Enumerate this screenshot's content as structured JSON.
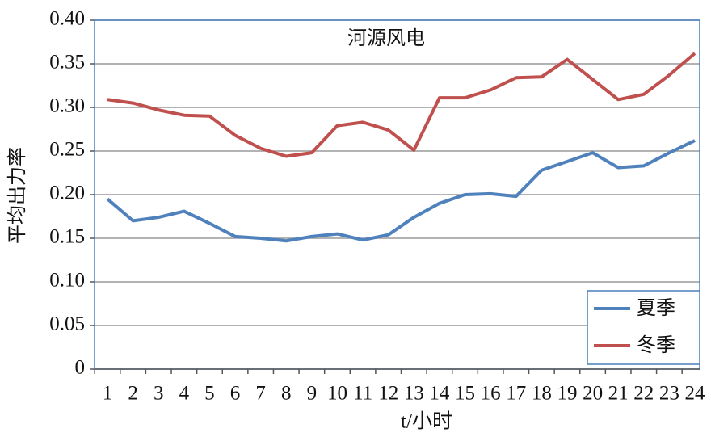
{
  "chart_data": {
    "type": "line",
    "title": "河源风电",
    "x_label": "t/小时",
    "y_label": "平均出力率",
    "categories": [
      "1",
      "2",
      "3",
      "4",
      "5",
      "6",
      "7",
      "8",
      "9",
      "10",
      "11",
      "12",
      "13",
      "14",
      "15",
      "16",
      "17",
      "18",
      "19",
      "20",
      "21",
      "22",
      "23",
      "24"
    ],
    "series": [
      {
        "name": "夏季",
        "color": "#4f81bd",
        "values": [
          0.195,
          0.17,
          0.174,
          0.181,
          0.167,
          0.152,
          0.15,
          0.147,
          0.152,
          0.155,
          0.148,
          0.154,
          0.174,
          0.19,
          0.2,
          0.201,
          0.198,
          0.228,
          0.238,
          0.248,
          0.231,
          0.233,
          0.248,
          0.262
        ]
      },
      {
        "name": "冬季",
        "color": "#c0504d",
        "values": [
          0.309,
          0.305,
          0.297,
          0.291,
          0.29,
          0.268,
          0.253,
          0.244,
          0.248,
          0.279,
          0.283,
          0.274,
          0.251,
          0.311,
          0.311,
          0.32,
          0.334,
          0.335,
          0.355,
          0.332,
          0.309,
          0.315,
          0.337,
          0.362
        ]
      }
    ],
    "ylim": [
      0,
      0.4
    ],
    "yticks": [
      0,
      {
        "value": 0.05,
        "label": "0.05"
      },
      {
        "value": 0.1,
        "label": "0.10"
      },
      {
        "value": 0.15,
        "label": "0.15"
      },
      {
        "value": 0.2,
        "label": "0.20"
      },
      {
        "value": 0.25,
        "label": "0.25"
      },
      {
        "value": 0.3,
        "label": "0.30"
      },
      {
        "value": 0.35,
        "label": "0.35"
      },
      {
        "value": 0.4,
        "label": "0.40"
      }
    ],
    "grid": true,
    "legend": "lower right"
  }
}
